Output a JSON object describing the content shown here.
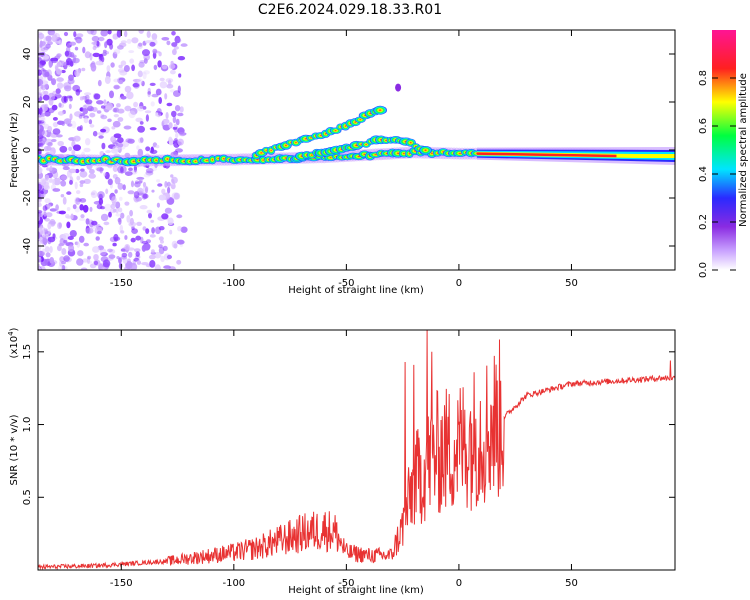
{
  "title": "C2E6.2024.029.18.33.R01",
  "colors": {
    "trace": "#e83232",
    "frame": "#000000"
  },
  "chart_data": [
    {
      "type": "heatmap",
      "xlabel": "Height of straight line (km)",
      "ylabel": "Frequency (Hz)",
      "xlim": [
        -187,
        96
      ],
      "ylim": [
        -50,
        50
      ],
      "xticks": [
        -150,
        -100,
        -50,
        0,
        50
      ],
      "yticks": [
        -40,
        -20,
        0,
        20,
        40
      ],
      "colorbar": {
        "label": "Normalized spectral amplitude",
        "range": [
          0,
          1
        ],
        "ticks": [
          "0.0",
          "0.2",
          "0.4",
          "0.6",
          "0.8"
        ],
        "colors": [
          "#ffffff",
          "#c9a2ff",
          "#8a2be2",
          "#2a2aff",
          "#00e5ff",
          "#00ff40",
          "#ffff00",
          "#ff2020",
          "#ff1493"
        ]
      },
      "features": [
        {
          "name": "main",
          "points": [
            [
              -187,
              -4
            ],
            [
              -150,
              -4.5
            ],
            [
              -100,
              -4
            ],
            [
              -60,
              -3
            ],
            [
              -40,
              -2
            ],
            [
              -20,
              -1
            ],
            [
              0,
              -1.5
            ],
            [
              50,
              -1.5
            ],
            [
              96,
              -2.5
            ]
          ]
        },
        {
          "name": "upper",
          "points": [
            [
              -90,
              -2
            ],
            [
              -70,
              4
            ],
            [
              -50,
              10
            ],
            [
              -35,
              17
            ]
          ]
        },
        {
          "name": "lower",
          "points": [
            [
              -70,
              -3
            ],
            [
              -50,
              1
            ],
            [
              -35,
              4
            ],
            [
              -25,
              4
            ],
            [
              -15,
              0
            ]
          ]
        }
      ]
    },
    {
      "type": "line",
      "xlabel": "Height of straight line (km)",
      "ylabel": "SNR (10 * v/v)",
      "exponent_label": "(x10",
      "exponent_power": "4",
      "xlim": [
        -187,
        96
      ],
      "ylim": [
        0,
        1.65
      ],
      "xticks": [
        -150,
        -100,
        -50,
        0,
        50
      ],
      "yticks": [
        0.5,
        1.0,
        1.5
      ],
      "ytick_labels": [
        "0.5",
        "1.0",
        "1.5"
      ],
      "envelope": {
        "x": [
          -187,
          -160,
          -140,
          -130,
          -120,
          -110,
          -100,
          -90,
          -80,
          -70,
          -60,
          -55,
          -50,
          -40,
          -30,
          -25,
          -20,
          -15,
          -10,
          0,
          10,
          20,
          30,
          50,
          70,
          90,
          96
        ],
        "y": [
          0.02,
          0.03,
          0.05,
          0.06,
          0.08,
          0.1,
          0.12,
          0.15,
          0.2,
          0.25,
          0.28,
          0.26,
          0.12,
          0.1,
          0.1,
          0.3,
          0.6,
          0.7,
          0.8,
          0.85,
          0.95,
          1.05,
          1.2,
          1.28,
          1.3,
          1.32,
          1.32
        ]
      },
      "spikes": [
        {
          "x": -24,
          "y": 1.43
        },
        {
          "x": -20,
          "y": 1.41
        },
        {
          "x": -14,
          "y": 1.65
        },
        {
          "x": -12,
          "y": 1.5
        },
        {
          "x": 94,
          "y": 1.44
        }
      ]
    }
  ]
}
